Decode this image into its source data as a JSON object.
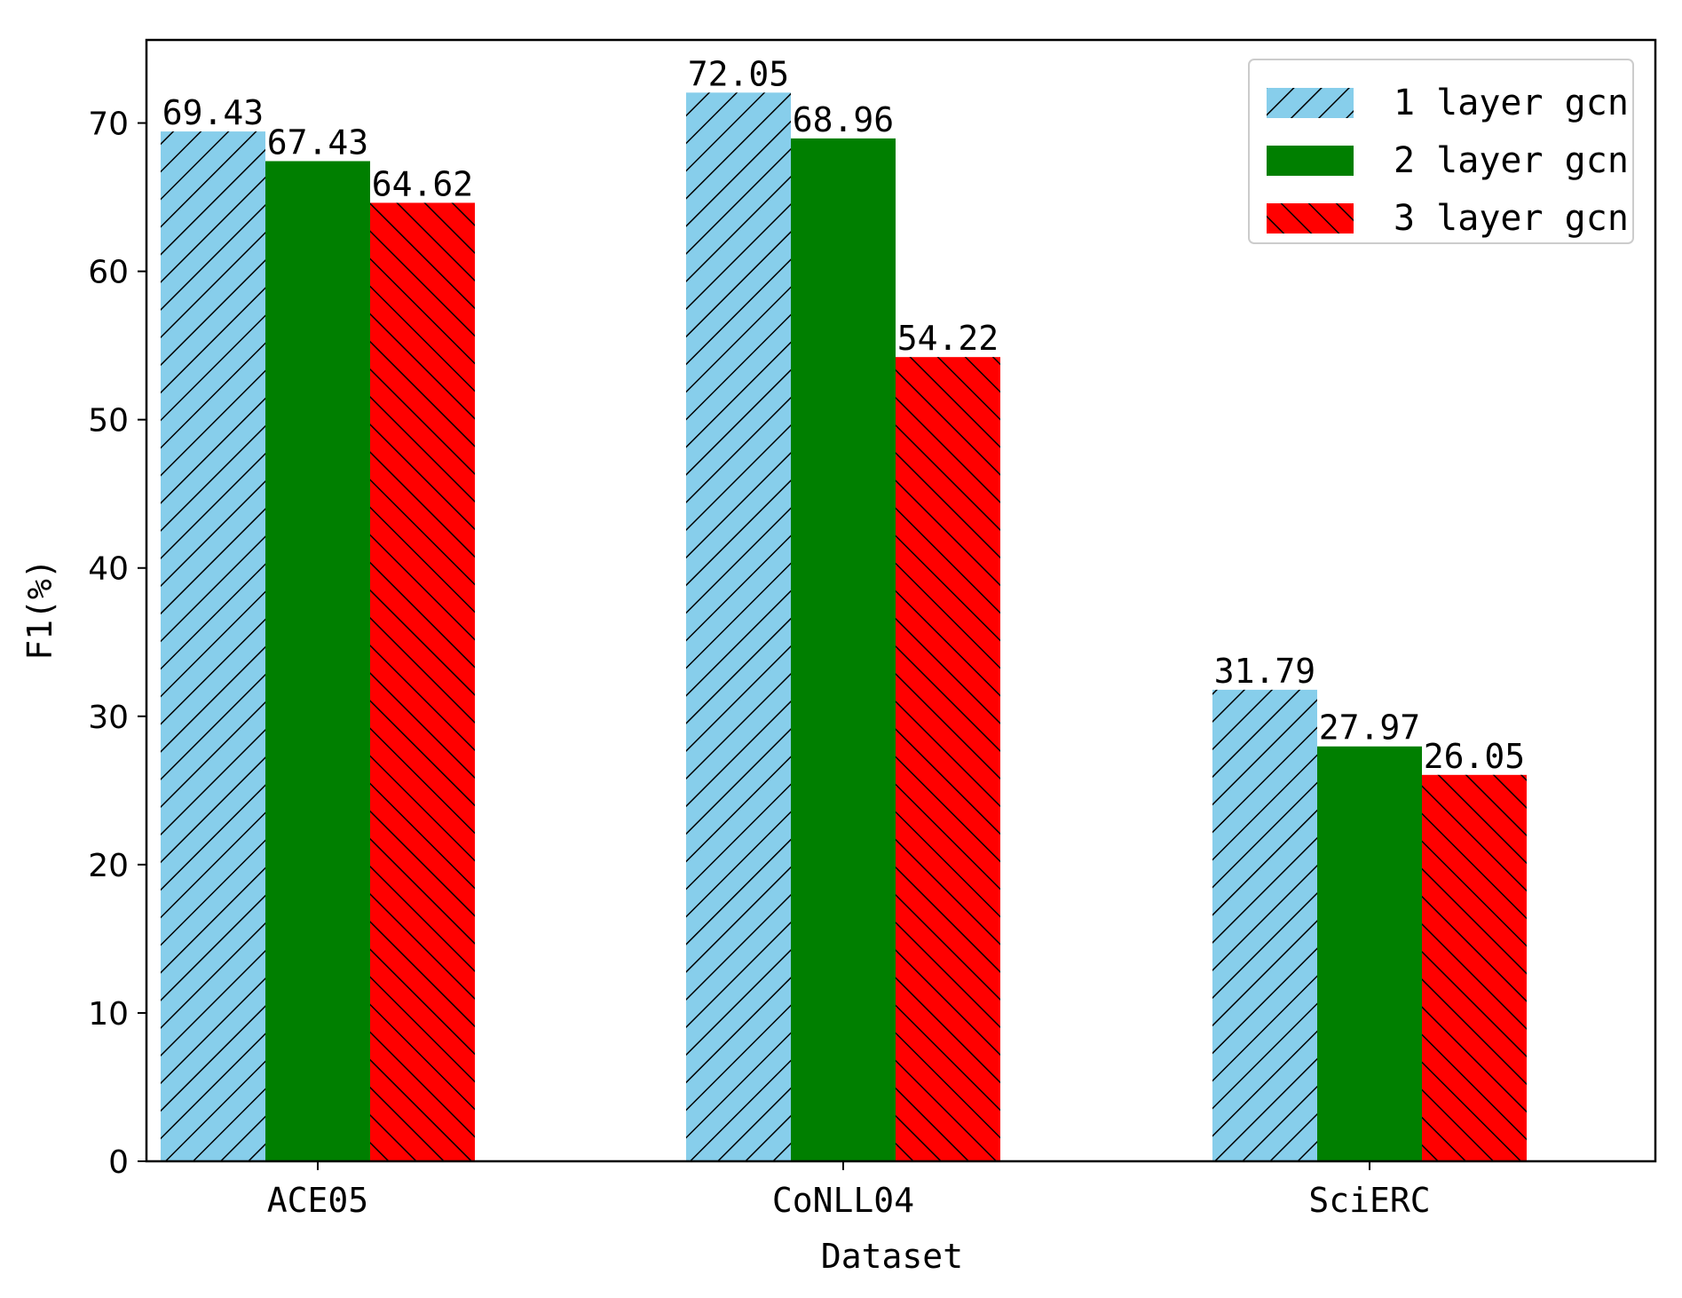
{
  "chart_data": {
    "type": "bar",
    "categories": [
      "ACE05",
      "CoNLL04",
      "SciERC"
    ],
    "series": [
      {
        "name": "1 layer gcn",
        "values": [
          69.43,
          72.05,
          31.79
        ],
        "color": "#87CEEB",
        "hatch": "forward-diagonal"
      },
      {
        "name": "2 layer gcn",
        "values": [
          67.43,
          68.96,
          27.97
        ],
        "color": "#007F00",
        "hatch": "none"
      },
      {
        "name": "3 layer gcn",
        "values": [
          64.62,
          54.22,
          26.05
        ],
        "color": "#FF0000",
        "hatch": "back-diagonal"
      }
    ],
    "data_labels": [
      [
        "69.43",
        "72.05",
        "31.79"
      ],
      [
        "67.43",
        "68.96",
        "27.97"
      ],
      [
        "64.62",
        "54.22",
        "26.05"
      ]
    ],
    "title": "",
    "xlabel": "Dataset",
    "ylabel": "F1(%)",
    "ylim": [
      0,
      75.6
    ],
    "yticks": [
      0,
      10,
      20,
      30,
      40,
      50,
      60,
      70
    ],
    "grid": false,
    "legend_position": "top-right"
  }
}
